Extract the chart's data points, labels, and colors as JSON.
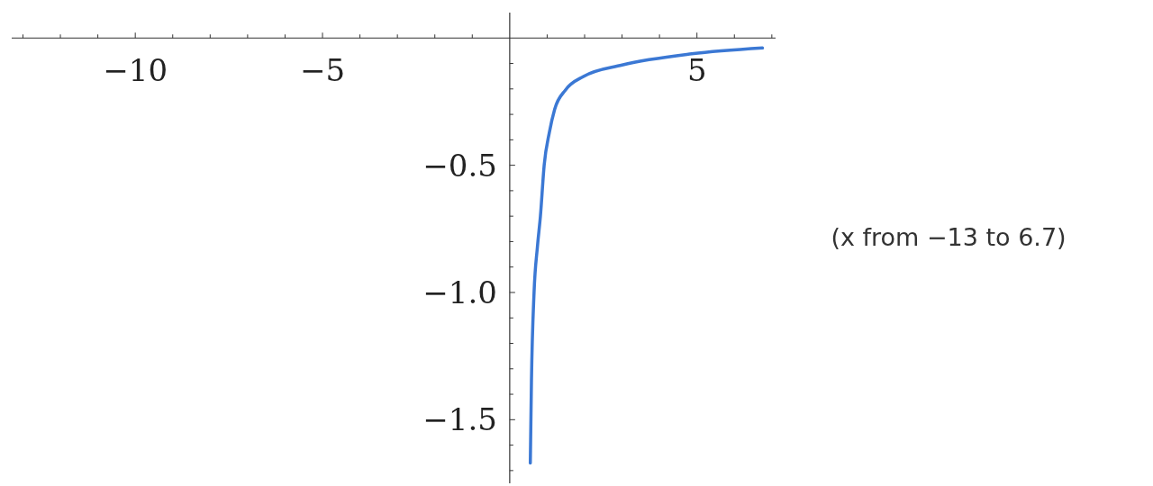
{
  "chart_data": {
    "type": "line",
    "x": [
      0.55,
      0.58,
      0.65,
      0.74,
      0.82,
      0.92,
      1.06,
      1.2,
      1.49,
      1.97,
      3.0,
      4.86,
      6.75
    ],
    "series": [
      {
        "color": "#3b78d4",
        "values": [
          -1.67,
          -1.35,
          -1.0,
          -0.82,
          -0.7,
          -0.5,
          -0.37,
          -0.28,
          -0.204,
          -0.151,
          -0.106,
          -0.062,
          -0.039
        ]
      }
    ],
    "xlim": [
      -13.3,
      7.1
    ],
    "ylim": [
      -1.75,
      0.1
    ],
    "xticks": [
      {
        "value": -13,
        "label": null
      },
      {
        "value": -12,
        "label": null
      },
      {
        "value": -11,
        "label": null
      },
      {
        "value": -10,
        "label": "−10"
      },
      {
        "value": -9,
        "label": null
      },
      {
        "value": -8,
        "label": null
      },
      {
        "value": -7,
        "label": null
      },
      {
        "value": -6,
        "label": null
      },
      {
        "value": -5,
        "label": "−5"
      },
      {
        "value": -4,
        "label": null
      },
      {
        "value": -3,
        "label": null
      },
      {
        "value": -2,
        "label": null
      },
      {
        "value": -1,
        "label": null
      },
      {
        "value": 1,
        "label": null
      },
      {
        "value": 2,
        "label": null
      },
      {
        "value": 3,
        "label": null
      },
      {
        "value": 4,
        "label": null
      },
      {
        "value": 5,
        "label": "5"
      },
      {
        "value": 6,
        "label": null
      },
      {
        "value": 7,
        "label": null
      }
    ],
    "yticks": [
      {
        "value": -1.7,
        "label": null
      },
      {
        "value": -1.6,
        "label": null
      },
      {
        "value": -1.5,
        "label": "−1.5"
      },
      {
        "value": -1.4,
        "label": null
      },
      {
        "value": -1.3,
        "label": null
      },
      {
        "value": -1.2,
        "label": null
      },
      {
        "value": -1.1,
        "label": null
      },
      {
        "value": -1.0,
        "label": "−1.0"
      },
      {
        "value": -0.9,
        "label": null
      },
      {
        "value": -0.8,
        "label": null
      },
      {
        "value": -0.7,
        "label": null
      },
      {
        "value": -0.6,
        "label": null
      },
      {
        "value": -0.5,
        "label": "−0.5"
      },
      {
        "value": -0.4,
        "label": null
      },
      {
        "value": -0.3,
        "label": null
      },
      {
        "value": -0.2,
        "label": null
      },
      {
        "value": -0.1,
        "label": null
      }
    ],
    "annotations": [
      "(x from −13 to 6.7)"
    ]
  }
}
